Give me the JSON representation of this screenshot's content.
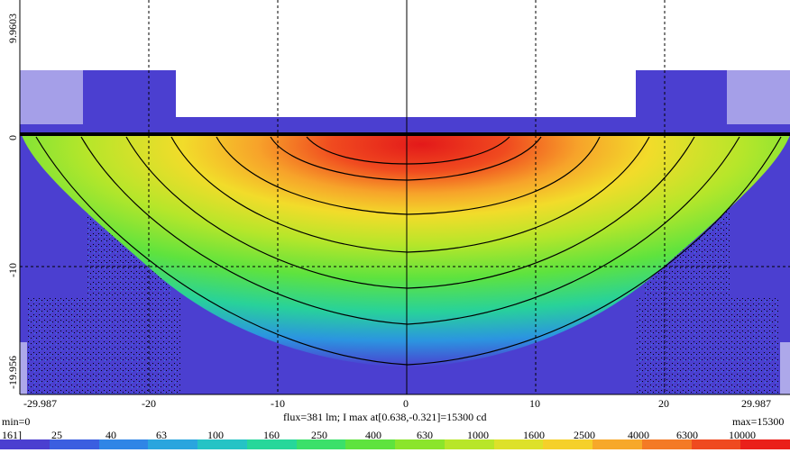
{
  "chart_data": {
    "type": "heatmap",
    "x_ticks": [
      "-29.987",
      "-20",
      "-10",
      "0",
      "10",
      "20",
      "29.987"
    ],
    "x_tick_values": [
      -29.987,
      -20,
      -10,
      0,
      10,
      20,
      29.987
    ],
    "y_ticks": [
      "9.9603",
      "0",
      "-10",
      "-19.956"
    ],
    "y_tick_values": [
      9.9603,
      0,
      -10,
      -19.956
    ],
    "xlim": [
      -29.987,
      29.987
    ],
    "ylim": [
      -19.956,
      9.9603
    ],
    "grid": true,
    "grid_style": "dashed",
    "min_label": "min=0",
    "max_label": "max=15300",
    "info": "flux=381 lm; I max at[0.638,-0.321]=15300 cd",
    "colorbar_labels": [
      "161]",
      "25",
      "40",
      "63",
      "100",
      "160",
      "250",
      "400",
      "630",
      "1000",
      "1600",
      "2500",
      "4000",
      "6300",
      "10000"
    ],
    "colorbar_colors": [
      "#4b3fd0",
      "#3b5ee0",
      "#2f85e6",
      "#2aa5de",
      "#25c3c5",
      "#27d79a",
      "#3be06a",
      "#5ee33e",
      "#8be52b",
      "#b8e629",
      "#dde12a",
      "#f5d02a",
      "#f7a82a",
      "#f47a25",
      "#ef4a1f",
      "#ea1f1a"
    ],
    "max_intensity": 15300,
    "peak": [
      0.638,
      -0.321
    ]
  }
}
